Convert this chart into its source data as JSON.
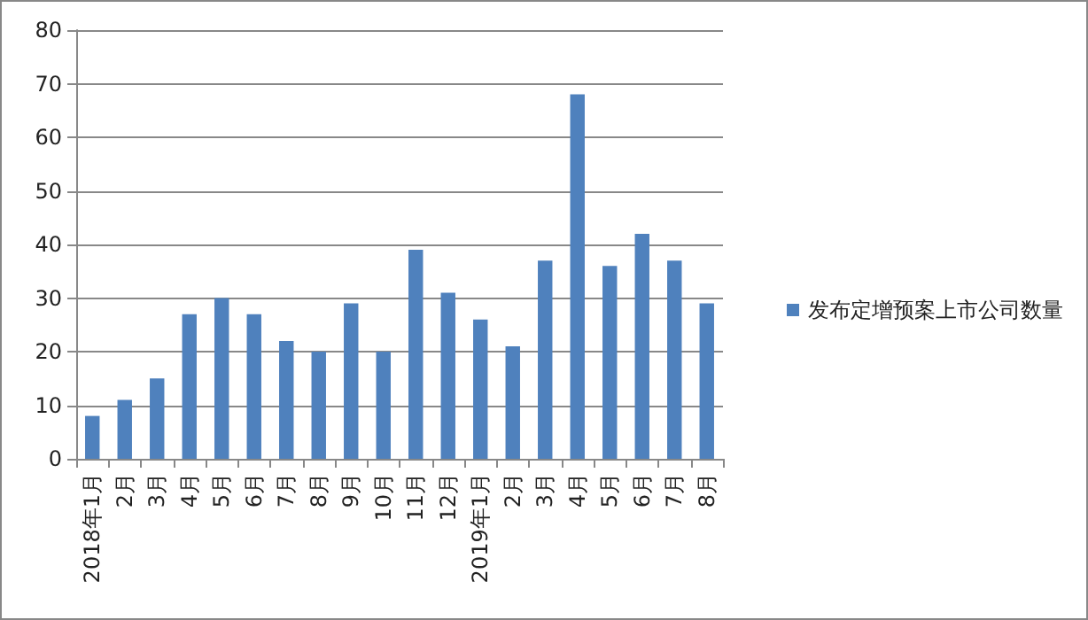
{
  "chart_data": {
    "type": "bar",
    "categories": [
      "2018年1月",
      "2月",
      "3月",
      "4月",
      "5月",
      "6月",
      "7月",
      "8月",
      "9月",
      "10月",
      "11月",
      "12月",
      "2019年1月",
      "2月",
      "3月",
      "4月",
      "5月",
      "6月",
      "7月",
      "8月"
    ],
    "series": [
      {
        "name": "发布定增预案上市公司数量",
        "color": "#4f81bd",
        "values": [
          8,
          11,
          15,
          27,
          30,
          27,
          22,
          20,
          29,
          20,
          39,
          31,
          26,
          21,
          37,
          68,
          36,
          42,
          37,
          29
        ]
      }
    ],
    "ylim": [
      0,
      80
    ],
    "yticks": [
      0,
      10,
      20,
      30,
      40,
      50,
      60,
      70,
      80
    ],
    "grid": "y",
    "legend": "right"
  }
}
